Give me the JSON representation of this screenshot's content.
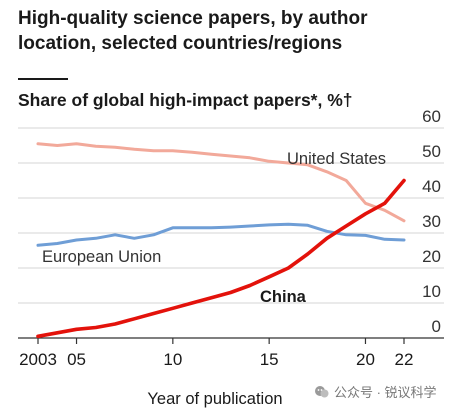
{
  "header": {
    "title": "High-quality science papers, by author location, selected countries/regions",
    "subtitle": "Share of global high-impact papers*, %†"
  },
  "watermark": {
    "text": "公众号 · 锐议科学"
  },
  "chart_data": {
    "type": "line",
    "title": "High-quality science papers, by author location, selected countries/regions",
    "subtitle": "Share of global high-impact papers*, %†",
    "xlabel": "Year of publication",
    "ylabel": "",
    "xlim": [
      2003,
      2022
    ],
    "ylim": [
      0,
      60
    ],
    "y_ticks": [
      0,
      10,
      20,
      30,
      40,
      50,
      60
    ],
    "x_ticks": [
      {
        "x": 2003,
        "label": "2003"
      },
      {
        "x": 2005,
        "label": "05"
      },
      {
        "x": 2010,
        "label": "10"
      },
      {
        "x": 2015,
        "label": "15"
      },
      {
        "x": 2020,
        "label": "20"
      },
      {
        "x": 2022,
        "label": "22"
      }
    ],
    "grid": "horizontal",
    "x": [
      2003,
      2004,
      2005,
      2006,
      2007,
      2008,
      2009,
      2010,
      2011,
      2012,
      2013,
      2014,
      2015,
      2016,
      2017,
      2018,
      2019,
      2020,
      2021,
      2022
    ],
    "series": [
      {
        "name": "United States",
        "color": "#f2a99a",
        "values": [
          55.5,
          55,
          55.5,
          54.8,
          54.5,
          53.9,
          53.5,
          53.5,
          53.1,
          52.5,
          52,
          51.5,
          50.5,
          50,
          49.5,
          47.5,
          45,
          38.5,
          36.5,
          33.5
        ]
      },
      {
        "name": "European Union",
        "color": "#6f9ed6",
        "values": [
          26.5,
          27,
          28,
          28.5,
          29.5,
          28.5,
          29.5,
          31.5,
          31.5,
          31.5,
          31.7,
          32,
          32.3,
          32.5,
          32.2,
          30.5,
          29.5,
          29.3,
          28.2,
          28
        ]
      },
      {
        "name": "China",
        "color": "#e3120b",
        "values": [
          0.5,
          1.5,
          2.5,
          3,
          4,
          5.5,
          7,
          8.5,
          10,
          11.5,
          13,
          15,
          17.5,
          20,
          24,
          28.5,
          32,
          35.5,
          38.5,
          45
        ]
      }
    ]
  }
}
